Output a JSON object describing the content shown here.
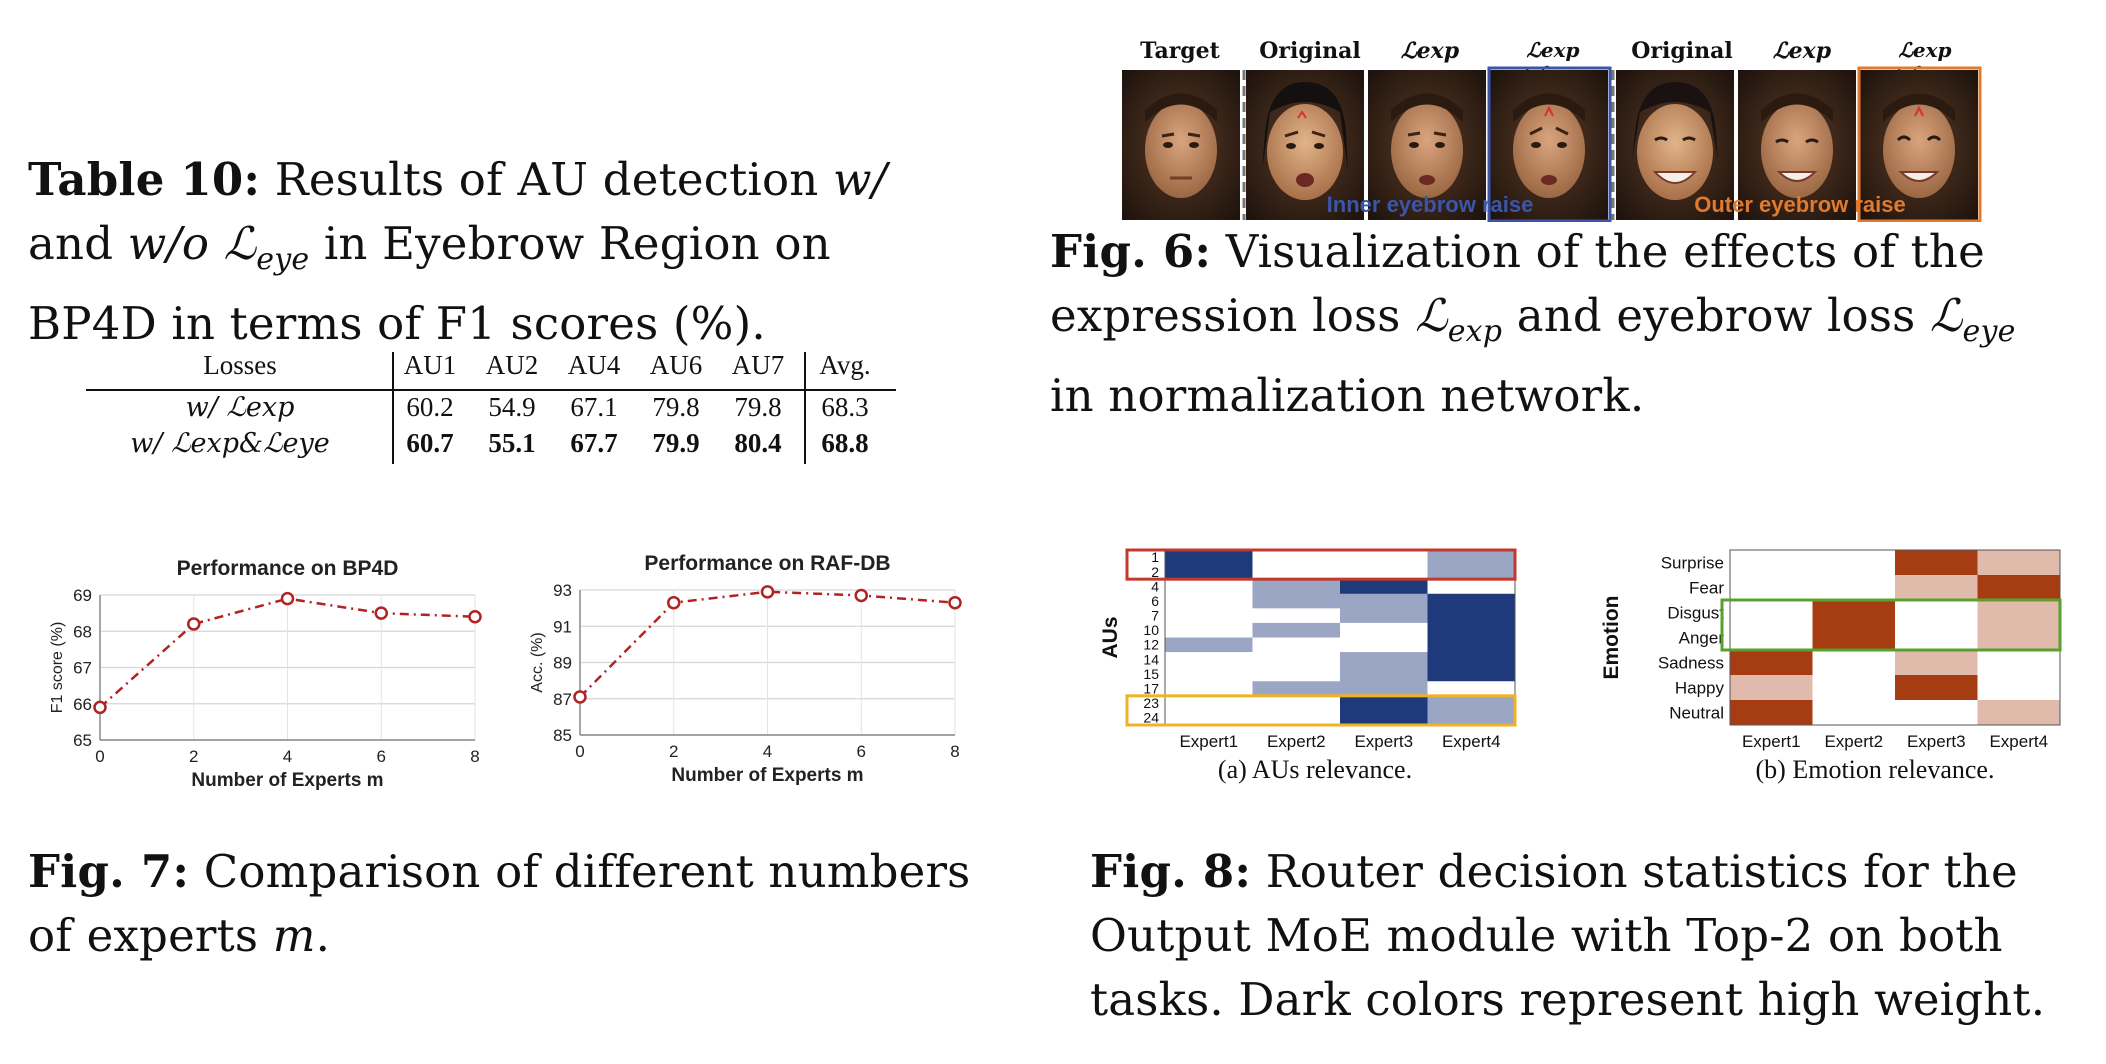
{
  "table10": {
    "caption_label": "Table 10:",
    "caption_text_1": "Results of AU detection ",
    "caption_w": "w/",
    "caption_and": "and ",
    "caption_wo": "w/o",
    "caption_leye": "ℒ",
    "caption_leye_sub": "eye",
    "caption_text_2": " in Eyebrow Region on",
    "caption_text_3": "BP4D in terms of F1 scores (%).",
    "headers": [
      "Losses",
      "AU1",
      "AU2",
      "AU4",
      "AU6",
      "AU7",
      "Avg."
    ],
    "rows": [
      {
        "loss": "w/ ℒexp",
        "values": [
          "60.2",
          "54.9",
          "67.1",
          "79.8",
          "79.8",
          "68.3"
        ]
      },
      {
        "loss": "w/ ℒexp&ℒeye",
        "values": [
          "60.7",
          "55.1",
          "67.7",
          "79.9",
          "80.4",
          "68.8"
        ]
      }
    ]
  },
  "fig6": {
    "col_labels": [
      "Target",
      "Original",
      "ℒexp",
      "ℒexp +ℒeye",
      "Original",
      "ℒexp",
      "ℒexp +ℒeye"
    ],
    "group_labels": [
      "Inner eyebrow raise",
      "Outer eyebrow raise"
    ],
    "caption_label": "Fig. 6:",
    "caption_line1": "Visualization of the effects of the",
    "caption_line2a": "expression loss ",
    "caption_line2b": " and eyebrow loss ",
    "caption_line3": "in normalization network.",
    "colors": {
      "inner": "#3b55a8",
      "outer": "#e07a2e"
    }
  },
  "fig7": {
    "caption_label": "Fig. 7:",
    "caption_line1": "Comparison of different numbers",
    "caption_line2": "of experts ",
    "caption_m": "m",
    "caption_end": "."
  },
  "fig8": {
    "caption_label": "Fig. 8:",
    "caption_line1": "Router decision statistics for the",
    "caption_line2": "Output MoE module with Top-2 on both",
    "caption_line3": "tasks. Dark colors represent high weight.",
    "sub_a": "(a) AUs relevance.",
    "sub_b": "(b) Emotion relevance."
  },
  "chart_data": [
    {
      "type": "line",
      "title": "Performance on BP4D",
      "xlabel": "Number of Experts m",
      "ylabel": "F1 score (%)",
      "x": [
        0,
        2,
        4,
        6,
        8
      ],
      "values": [
        65.9,
        68.2,
        68.9,
        68.5,
        68.4
      ],
      "xlim": [
        0,
        8
      ],
      "ylim": [
        65,
        69
      ],
      "yticks": [
        "65",
        "66",
        "67",
        "68",
        "69"
      ],
      "xticks": [
        "0",
        "2",
        "4",
        "6",
        "8"
      ],
      "grid": true,
      "color": "#b22222"
    },
    {
      "type": "line",
      "title": "Performance on RAF-DB",
      "xlabel": "Number of Experts m",
      "ylabel": "Acc. (%)",
      "x": [
        0,
        2,
        4,
        6,
        8
      ],
      "values": [
        87.1,
        92.3,
        92.9,
        92.7,
        92.3
      ],
      "xlim": [
        0,
        8
      ],
      "ylim": [
        85,
        93
      ],
      "yticks": [
        "85",
        "87",
        "89",
        "91",
        "93"
      ],
      "xticks": [
        "0",
        "2",
        "4",
        "6",
        "8"
      ],
      "grid": true,
      "color": "#b22222"
    },
    {
      "type": "heatmap",
      "ylabel": "AUs",
      "rows": [
        "1",
        "2",
        "4",
        "6",
        "7",
        "10",
        "12",
        "14",
        "15",
        "17",
        "23",
        "24"
      ],
      "cols": [
        "Expert1",
        "Expert2",
        "Expert3",
        "Expert4"
      ],
      "values": [
        [
          1.0,
          0.0,
          0.0,
          0.45
        ],
        [
          1.0,
          0.0,
          0.0,
          0.45
        ],
        [
          0.0,
          0.45,
          1.0,
          0.0
        ],
        [
          0.0,
          0.45,
          0.45,
          1.0
        ],
        [
          0.0,
          0.0,
          0.45,
          1.0
        ],
        [
          0.0,
          0.45,
          0.0,
          1.0
        ],
        [
          0.45,
          0.0,
          0.0,
          1.0
        ],
        [
          0.0,
          0.0,
          0.45,
          1.0
        ],
        [
          0.0,
          0.0,
          0.45,
          1.0
        ],
        [
          0.0,
          0.45,
          0.45,
          0.0
        ],
        [
          0.0,
          0.0,
          1.0,
          0.45
        ],
        [
          0.0,
          0.0,
          1.0,
          0.45
        ]
      ],
      "color": "#1f3a7a",
      "highlight_colors": {
        "top": "#c0392b",
        "bottom": "#f0b323"
      }
    },
    {
      "type": "heatmap",
      "ylabel": "Emotion",
      "rows": [
        "Surprise",
        "Fear",
        "Disgust",
        "Anger",
        "Sadness",
        "Happy",
        "Neutral"
      ],
      "cols": [
        "Expert1",
        "Expert2",
        "Expert3",
        "Expert4"
      ],
      "values": [
        [
          0.0,
          0.0,
          1.0,
          0.35
        ],
        [
          0.0,
          0.0,
          0.35,
          1.0
        ],
        [
          0.0,
          1.0,
          0.0,
          0.35
        ],
        [
          0.0,
          1.0,
          0.0,
          0.35
        ],
        [
          1.0,
          0.0,
          0.35,
          0.0
        ],
        [
          0.35,
          0.0,
          1.0,
          0.0
        ],
        [
          1.0,
          0.0,
          0.0,
          0.35
        ]
      ],
      "color": "#a53c12",
      "highlight_colors": {
        "mid": "#5aa02c"
      }
    }
  ]
}
